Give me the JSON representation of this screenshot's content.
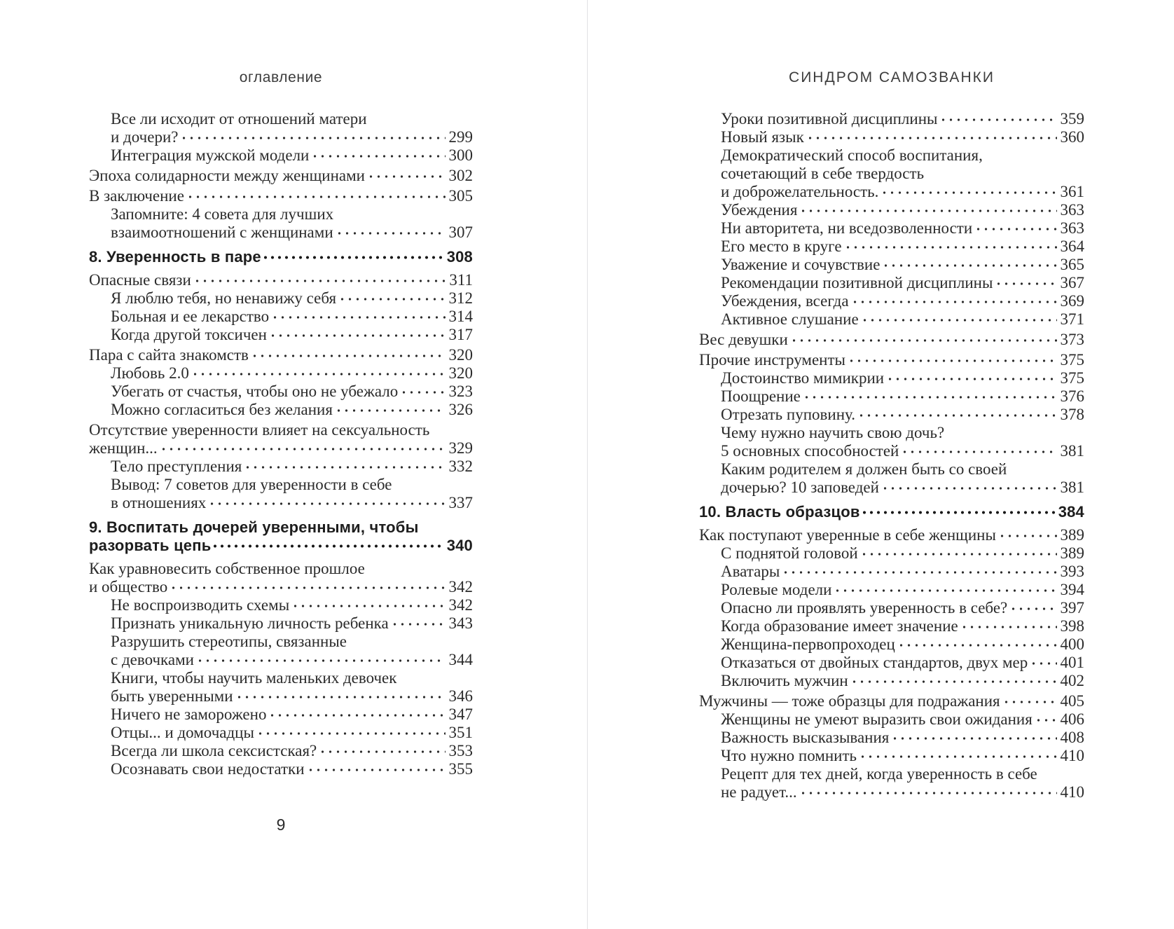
{
  "colors": {
    "background": "#ffffff",
    "text": "#2b2b2b",
    "divider": "#e1e1e4"
  },
  "book": {
    "left_page": {
      "running_head": "оглавление",
      "folio": "9",
      "entries": [
        {
          "lines": [
            "Все ли исходит от отношений матери",
            "и дочери?"
          ],
          "page": "299",
          "indent": true
        },
        {
          "lines": [
            "Интеграция мужской модели"
          ],
          "page": "300",
          "indent": true
        },
        {
          "lines": [
            "Эпоха солидарности между женщинами"
          ],
          "page": "302"
        },
        {
          "lines": [
            "В заключение"
          ],
          "page": "305"
        },
        {
          "lines": [
            "Запомните: 4 совета для лучших",
            "взаимоотношений с женщинами"
          ],
          "page": "307",
          "indent": true
        },
        {
          "lines": [
            "8. Уверенность в паре"
          ],
          "page": "308",
          "heading": true
        },
        {
          "lines": [
            "Опасные связи"
          ],
          "page": "311"
        },
        {
          "lines": [
            "Я люблю тебя, но ненавижу себя"
          ],
          "page": "312",
          "indent": true
        },
        {
          "lines": [
            "Больная и ее лекарство"
          ],
          "page": "314",
          "indent": true
        },
        {
          "lines": [
            "Когда другой токсичен"
          ],
          "page": "317",
          "indent": true
        },
        {
          "lines": [
            "Пара с сайта знакомств"
          ],
          "page": "320"
        },
        {
          "lines": [
            "Любовь 2.0"
          ],
          "page": "320",
          "indent": true
        },
        {
          "lines": [
            "Убегать от счастья, чтобы оно не убежало"
          ],
          "page": "323",
          "indent": true
        },
        {
          "lines": [
            "Можно согласиться без желания"
          ],
          "page": "326",
          "indent": true
        },
        {
          "lines": [
            "Отсутствие уверенности влияет на сексуальность",
            "женщин..."
          ],
          "page": "329"
        },
        {
          "lines": [
            "Тело преступления"
          ],
          "page": "332",
          "indent": true
        },
        {
          "lines": [
            "Вывод: 7 советов для уверенности в себе",
            "в отношениях"
          ],
          "page": "337",
          "indent": true
        },
        {
          "lines": [
            "9. Воспитать дочерей уверенными, чтобы",
            "разорвать цепь"
          ],
          "page": "340",
          "heading": true
        },
        {
          "lines": [
            "Как уравновесить собственное прошлое",
            "и общество"
          ],
          "page": "342"
        },
        {
          "lines": [
            "Не воспроизводить схемы"
          ],
          "page": "342",
          "indent": true
        },
        {
          "lines": [
            "Признать уникальную личность ребенка"
          ],
          "page": "343",
          "indent": true
        },
        {
          "lines": [
            "Разрушить стереотипы, связанные",
            "с девочками"
          ],
          "page": "344",
          "indent": true
        },
        {
          "lines": [
            "Книги, чтобы научить маленьких девочек",
            "быть уверенными"
          ],
          "page": "346",
          "indent": true
        },
        {
          "lines": [
            "Ничего не заморожено"
          ],
          "page": "347",
          "indent": true
        },
        {
          "lines": [
            "Отцы... и домочадцы"
          ],
          "page": "351",
          "indent": true
        },
        {
          "lines": [
            "Всегда ли школа сексистская?"
          ],
          "page": "353",
          "indent": true
        },
        {
          "lines": [
            "Осознавать свои недостатки"
          ],
          "page": "355",
          "indent": true
        }
      ]
    },
    "right_page": {
      "running_head": "СИНДРОМ САМОЗВАНКИ",
      "entries": [
        {
          "lines": [
            "Уроки позитивной дисциплины"
          ],
          "page": "359",
          "indent": true
        },
        {
          "lines": [
            "Новый язык"
          ],
          "page": "360",
          "indent": true
        },
        {
          "lines": [
            "Демократический способ воспитания,",
            "сочетающий в себе твердость",
            "и доброжелательность."
          ],
          "page": "361",
          "indent": true
        },
        {
          "lines": [
            "Убеждения"
          ],
          "page": "363",
          "indent": true
        },
        {
          "lines": [
            "Ни авторитета, ни вседозволенности"
          ],
          "page": "363",
          "indent": true
        },
        {
          "lines": [
            "Его место в круге"
          ],
          "page": "364",
          "indent": true
        },
        {
          "lines": [
            "Уважение и сочувствие"
          ],
          "page": "365",
          "indent": true
        },
        {
          "lines": [
            "Рекомендации позитивной дисциплины"
          ],
          "page": "367",
          "indent": true
        },
        {
          "lines": [
            "Убеждения, всегда"
          ],
          "page": "369",
          "indent": true
        },
        {
          "lines": [
            "Активное слушание"
          ],
          "page": "371",
          "indent": true
        },
        {
          "lines": [
            "Вес девушки"
          ],
          "page": "373"
        },
        {
          "lines": [
            "Прочие инструменты"
          ],
          "page": "375"
        },
        {
          "lines": [
            "Достоинство мимикрии"
          ],
          "page": "375",
          "indent": true
        },
        {
          "lines": [
            "Поощрение"
          ],
          "page": "376",
          "indent": true
        },
        {
          "lines": [
            "Отрезать пуповину."
          ],
          "page": "378",
          "indent": true
        },
        {
          "lines": [
            "Чему нужно научить свою дочь?",
            "5 основных способностей"
          ],
          "page": "381",
          "indent": true
        },
        {
          "lines": [
            "Каким родителем я должен быть со своей",
            "дочерью? 10 заповедей"
          ],
          "page": "381",
          "indent": true
        },
        {
          "lines": [
            "10. Власть образцов"
          ],
          "page": "384",
          "heading": true
        },
        {
          "lines": [
            "Как поступают уверенные в себе женщины"
          ],
          "page": "389"
        },
        {
          "lines": [
            "С поднятой головой"
          ],
          "page": "389",
          "indent": true
        },
        {
          "lines": [
            "Аватары"
          ],
          "page": "393",
          "indent": true
        },
        {
          "lines": [
            "Ролевые модели"
          ],
          "page": "394",
          "indent": true
        },
        {
          "lines": [
            "Опасно ли проявлять уверенность в себе?"
          ],
          "page": "397",
          "indent": true
        },
        {
          "lines": [
            "Когда образование имеет значение"
          ],
          "page": "398",
          "indent": true
        },
        {
          "lines": [
            "Женщина-первопроходец"
          ],
          "page": "400",
          "indent": true
        },
        {
          "lines": [
            "Отказаться от двойных стандартов, двух мер"
          ],
          "page": "401",
          "indent": true
        },
        {
          "lines": [
            "Включить мужчин"
          ],
          "page": "402",
          "indent": true
        },
        {
          "lines": [
            "Мужчины — тоже образцы для подражания"
          ],
          "page": "405"
        },
        {
          "lines": [
            "Женщины не умеют выразить свои ожидания"
          ],
          "page": "406",
          "indent": true
        },
        {
          "lines": [
            "Важность высказывания"
          ],
          "page": "408",
          "indent": true
        },
        {
          "lines": [
            "Что нужно помнить"
          ],
          "page": "410",
          "indent": true
        },
        {
          "lines": [
            "Рецепт для тех дней, когда уверенность в себе",
            "не радует..."
          ],
          "page": "410",
          "indent": true
        }
      ]
    }
  }
}
